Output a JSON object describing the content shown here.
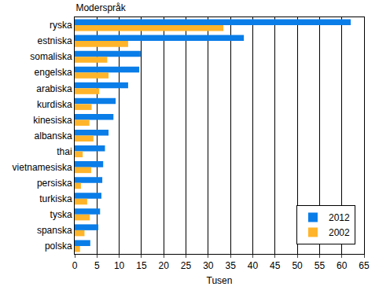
{
  "chart_data": {
    "type": "bar",
    "orientation": "horizontal",
    "title": "Moderspråk",
    "x_label": "Tusen",
    "categories": [
      "ryska",
      "estniska",
      "somaliska",
      "engelska",
      "arabiska",
      "kurdiska",
      "kinesiska",
      "albanska",
      "thai",
      "vietnamesiska",
      "persiska",
      "turkiska",
      "tyska",
      "spanska",
      "polska"
    ],
    "series": [
      {
        "name": "2012",
        "color": "#0a7de8",
        "values": [
          62,
          38,
          14.8,
          14.5,
          12,
          9.2,
          8.7,
          7.6,
          6.8,
          6.4,
          6.2,
          6,
          5.7,
          5.3,
          3.5
        ]
      },
      {
        "name": "2002",
        "color": "#ffb42a",
        "values": [
          33.4,
          12,
          7.3,
          7.6,
          5.5,
          3.8,
          3.3,
          4.2,
          1.8,
          3.7,
          1.4,
          2.8,
          3.4,
          2.2,
          1.2
        ]
      }
    ],
    "xlim": [
      0,
      65
    ],
    "xticks": [
      0,
      5,
      10,
      15,
      20,
      25,
      30,
      35,
      40,
      45,
      50,
      55,
      60,
      65
    ],
    "grid": true,
    "legend": "lower right"
  }
}
